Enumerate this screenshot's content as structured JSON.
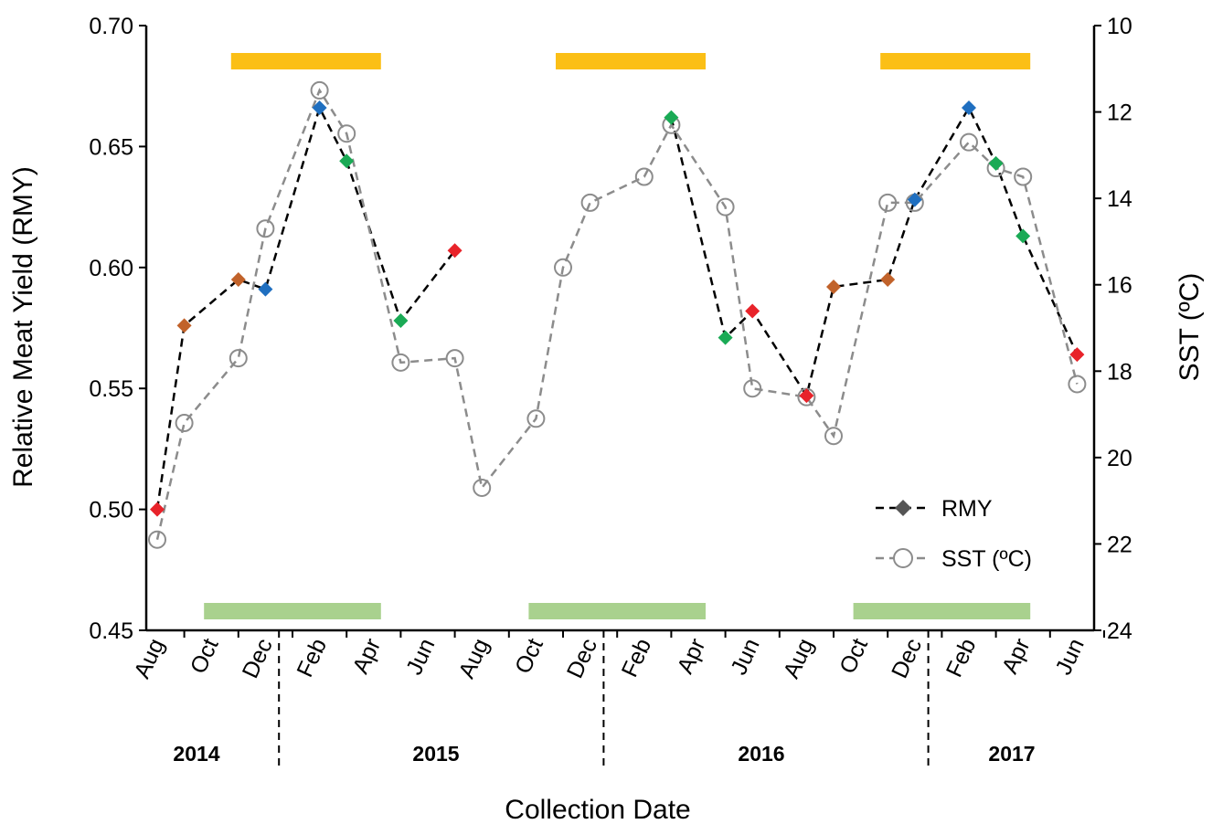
{
  "chart_data": {
    "type": "line",
    "xlabel": "Collection Date",
    "ylabel": "Relative Meat Yield (RMY)",
    "y2label": "SST (ºC)",
    "ylim": [
      0.45,
      0.7
    ],
    "yticks": [
      "0.45",
      "0.50",
      "0.55",
      "0.60",
      "0.65",
      "0.70"
    ],
    "y2lim": [
      24,
      10
    ],
    "y2ticks": [
      "10",
      "12",
      "14",
      "16",
      "18",
      "20",
      "22",
      "24"
    ],
    "x_range": [
      "2014-08",
      "2017-06"
    ],
    "month_ticks": [
      "Aug",
      "Oct",
      "Dec",
      "Feb",
      "Apr",
      "Jun",
      "Aug",
      "Oct",
      "Dec",
      "Feb",
      "Apr",
      "Jun",
      "Aug",
      "Oct",
      "Dec",
      "Feb",
      "Apr",
      "Jun"
    ],
    "years": [
      "2014",
      "2015",
      "2016",
      "2017"
    ],
    "grid": false,
    "legend_position": "bottom-right",
    "series": [
      {
        "name": "RMY",
        "axis": "left",
        "style": "black dashed line with diamond markers",
        "line_color": "#000000",
        "points": [
          {
            "x": "2014-08",
            "y": 0.5,
            "color": "#e8232a"
          },
          {
            "x": "2014-09",
            "y": 0.576,
            "color": "#c1622a"
          },
          {
            "x": "2014-11",
            "y": 0.595,
            "color": "#c1622a"
          },
          {
            "x": "2014-12",
            "y": 0.591,
            "color": "#1f6fc0"
          },
          {
            "x": "2015-02",
            "y": 0.666,
            "color": "#1f6fc0"
          },
          {
            "x": "2015-03",
            "y": 0.644,
            "color": "#1aaa55"
          },
          {
            "x": "2015-05",
            "y": 0.578,
            "color": "#1aaa55"
          },
          {
            "x": "2015-07",
            "y": 0.607,
            "color": "#e8232a"
          },
          {
            "x": null,
            "y": null
          },
          {
            "x": "2016-03",
            "y": 0.662,
            "color": "#1aaa55"
          },
          {
            "x": "2016-05",
            "y": 0.571,
            "color": "#1aaa55"
          },
          {
            "x": "2016-06",
            "y": 0.582,
            "color": "#e8232a"
          },
          {
            "x": "2016-08",
            "y": 0.547,
            "color": "#e8232a"
          },
          {
            "x": "2016-09",
            "y": 0.592,
            "color": "#c1622a"
          },
          {
            "x": "2016-11",
            "y": 0.595,
            "color": "#c1622a"
          },
          {
            "x": "2016-12",
            "y": 0.628,
            "color": "#1f6fc0"
          },
          {
            "x": "2017-02",
            "y": 0.666,
            "color": "#1f6fc0"
          },
          {
            "x": "2017-03",
            "y": 0.643,
            "color": "#1aaa55"
          },
          {
            "x": "2017-04",
            "y": 0.613,
            "color": "#1aaa55"
          },
          {
            "x": "2017-06",
            "y": 0.564,
            "color": "#e8232a"
          }
        ]
      },
      {
        "name": "SST (ºC)",
        "axis": "right",
        "style": "gray dashed line with open circle markers",
        "line_color": "#8c8c8c",
        "points": [
          {
            "x": "2014-08",
            "y": 21.9
          },
          {
            "x": "2014-09",
            "y": 19.2
          },
          {
            "x": "2014-11",
            "y": 17.7
          },
          {
            "x": "2014-12",
            "y": 14.7
          },
          {
            "x": "2015-02",
            "y": 11.5
          },
          {
            "x": "2015-03",
            "y": 12.5
          },
          {
            "x": "2015-05",
            "y": 17.8
          },
          {
            "x": "2015-07",
            "y": 17.7
          },
          {
            "x": "2015-08",
            "y": 20.7
          },
          {
            "x": "2015-10",
            "y": 19.1
          },
          {
            "x": "2015-11",
            "y": 15.6
          },
          {
            "x": "2015-12",
            "y": 14.1
          },
          {
            "x": "2016-02",
            "y": 13.5
          },
          {
            "x": "2016-03",
            "y": 12.3
          },
          {
            "x": "2016-05",
            "y": 14.2
          },
          {
            "x": "2016-06",
            "y": 18.4
          },
          {
            "x": "2016-08",
            "y": 18.6
          },
          {
            "x": "2016-09",
            "y": 19.5
          },
          {
            "x": "2016-11",
            "y": 14.1
          },
          {
            "x": "2016-12",
            "y": 14.1
          },
          {
            "x": "2017-02",
            "y": 12.7
          },
          {
            "x": "2017-03",
            "y": 13.3
          },
          {
            "x": "2017-04",
            "y": 13.5
          },
          {
            "x": "2017-06",
            "y": 18.3
          }
        ]
      }
    ],
    "bands": [
      {
        "position": "top",
        "color": "#fbbf16",
        "start": "2014-11",
        "end": "2015-04"
      },
      {
        "position": "top",
        "color": "#fbbf16",
        "start": "2015-11",
        "end": "2016-04"
      },
      {
        "position": "top",
        "color": "#fbbf16",
        "start": "2016-11",
        "end": "2017-04"
      },
      {
        "position": "bottom",
        "color": "#a9d18e",
        "start": "2014-10",
        "end": "2015-04"
      },
      {
        "position": "bottom",
        "color": "#a9d18e",
        "start": "2015-10",
        "end": "2016-04"
      },
      {
        "position": "bottom",
        "color": "#a9d18e",
        "start": "2016-10",
        "end": "2017-04"
      }
    ],
    "legend": [
      {
        "name": "RMY",
        "marker": "diamond"
      },
      {
        "name": "SST (ºC)",
        "marker": "circle"
      }
    ]
  }
}
